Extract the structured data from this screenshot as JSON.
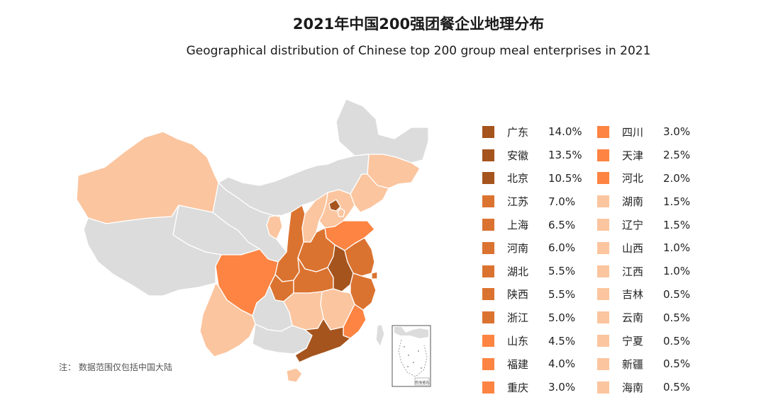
{
  "title_cn": "2021年中国200强团餐企业地理分布",
  "title_en": "Geographical distribution of Chinese top 200 group meal enterprises in 2021",
  "footnote": "注：  数据范围仅包括中国大陆",
  "inset_label": "南海诸岛",
  "colors": {
    "no_data": "#dcdcdc",
    "border": "#ffffff",
    "level_1": "#a5541e",
    "level_2": "#db7330",
    "level_3": "#fd8442",
    "level_4": "#fbc59f"
  },
  "legend": [
    {
      "name": "广东",
      "value": "14.0%",
      "color": "#a5541e"
    },
    {
      "name": "安徽",
      "value": "13.5%",
      "color": "#a5541e"
    },
    {
      "name": "北京",
      "value": "10.5%",
      "color": "#a5541e"
    },
    {
      "name": "江苏",
      "value": "7.0%",
      "color": "#db7330"
    },
    {
      "name": "上海",
      "value": "6.5%",
      "color": "#db7330"
    },
    {
      "name": "河南",
      "value": "6.0%",
      "color": "#db7330"
    },
    {
      "name": "湖北",
      "value": "5.5%",
      "color": "#db7330"
    },
    {
      "name": "陕西",
      "value": "5.5%",
      "color": "#db7330"
    },
    {
      "name": "浙江",
      "value": "5.0%",
      "color": "#db7330"
    },
    {
      "name": "山东",
      "value": "4.5%",
      "color": "#fd8442"
    },
    {
      "name": "福建",
      "value": "4.0%",
      "color": "#fd8442"
    },
    {
      "name": "重庆",
      "value": "3.0%",
      "color": "#fd8442"
    },
    {
      "name": "四川",
      "value": "3.0%",
      "color": "#fd8442"
    },
    {
      "name": "天津",
      "value": "2.5%",
      "color": "#fd8442"
    },
    {
      "name": "河北",
      "value": "2.0%",
      "color": "#fd8442"
    },
    {
      "name": "湖南",
      "value": "1.5%",
      "color": "#fbc59f"
    },
    {
      "name": "辽宁",
      "value": "1.5%",
      "color": "#fbc59f"
    },
    {
      "name": "山西",
      "value": "1.0%",
      "color": "#fbc59f"
    },
    {
      "name": "江西",
      "value": "1.0%",
      "color": "#fbc59f"
    },
    {
      "name": "吉林",
      "value": "0.5%",
      "color": "#fbc59f"
    },
    {
      "name": "云南",
      "value": "0.5%",
      "color": "#fbc59f"
    },
    {
      "name": "宁夏",
      "value": "0.5%",
      "color": "#fbc59f"
    },
    {
      "name": "新疆",
      "value": "0.5%",
      "color": "#fbc59f"
    },
    {
      "name": "海南",
      "value": "0.5%",
      "color": "#fbc59f"
    }
  ]
}
